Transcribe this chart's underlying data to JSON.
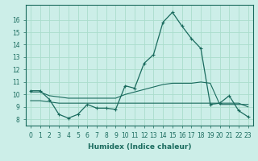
{
  "xlabel": "Humidex (Indice chaleur)",
  "xlim": [
    -0.5,
    23.5
  ],
  "ylim": [
    7.5,
    17.2
  ],
  "yticks": [
    8,
    9,
    10,
    11,
    12,
    13,
    14,
    15,
    16
  ],
  "xticks": [
    0,
    1,
    2,
    3,
    4,
    5,
    6,
    7,
    8,
    9,
    10,
    11,
    12,
    13,
    14,
    15,
    16,
    17,
    18,
    19,
    20,
    21,
    22,
    23
  ],
  "bg_color": "#cceee8",
  "line_color": "#1a6b5e",
  "grid_color": "#aaddcc",
  "main_x": [
    0,
    1,
    2,
    3,
    4,
    5,
    6,
    7,
    8,
    9,
    10,
    11,
    12,
    13,
    14,
    15,
    16,
    17,
    18,
    19,
    20,
    21,
    22,
    23
  ],
  "main_y": [
    10.3,
    10.3,
    9.6,
    8.4,
    8.1,
    8.4,
    9.2,
    8.9,
    8.9,
    8.8,
    10.7,
    10.5,
    12.5,
    13.2,
    15.8,
    16.6,
    15.5,
    14.5,
    13.7,
    9.2,
    9.3,
    9.9,
    8.7,
    8.2
  ],
  "flat1_x": [
    0,
    1,
    2,
    3,
    4,
    5,
    6,
    7,
    8,
    9,
    10,
    11,
    12,
    13,
    14,
    15,
    16,
    17,
    18,
    19,
    20,
    21,
    22,
    23
  ],
  "flat1_y": [
    10.2,
    10.2,
    9.9,
    9.8,
    9.7,
    9.7,
    9.7,
    9.7,
    9.7,
    9.7,
    10.0,
    10.2,
    10.4,
    10.6,
    10.8,
    10.9,
    10.9,
    10.9,
    11.0,
    10.9,
    9.2,
    9.2,
    9.2,
    9.2
  ],
  "flat2_x": [
    0,
    1,
    2,
    3,
    4,
    5,
    6,
    7,
    8,
    9,
    10,
    11,
    12,
    13,
    14,
    15,
    16,
    17,
    18,
    19,
    20,
    21,
    22,
    23
  ],
  "flat2_y": [
    9.5,
    9.5,
    9.4,
    9.3,
    9.3,
    9.3,
    9.3,
    9.3,
    9.3,
    9.3,
    9.3,
    9.3,
    9.3,
    9.3,
    9.3,
    9.3,
    9.3,
    9.3,
    9.3,
    9.3,
    9.3,
    9.3,
    9.3,
    9.0
  ],
  "tick_fontsize": 5.5,
  "xlabel_fontsize": 6.5
}
